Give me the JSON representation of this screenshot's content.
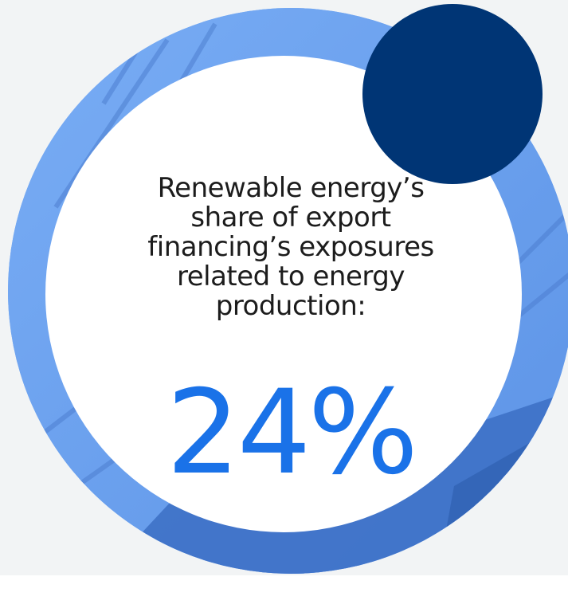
{
  "callout": {
    "caption_lines": [
      "Renewable energy’s",
      "share of export",
      "financing’s exposures",
      "related to energy",
      "production:"
    ],
    "value": "24%",
    "share_fraction": 0.24
  },
  "colors": {
    "background": "#f2f4f5",
    "ring": "#6aa2f2",
    "ring_shade": "#3c6fc4",
    "accent_dot": "#003575",
    "value_text": "#1a72e8",
    "caption_text": "#1c1c1c"
  }
}
